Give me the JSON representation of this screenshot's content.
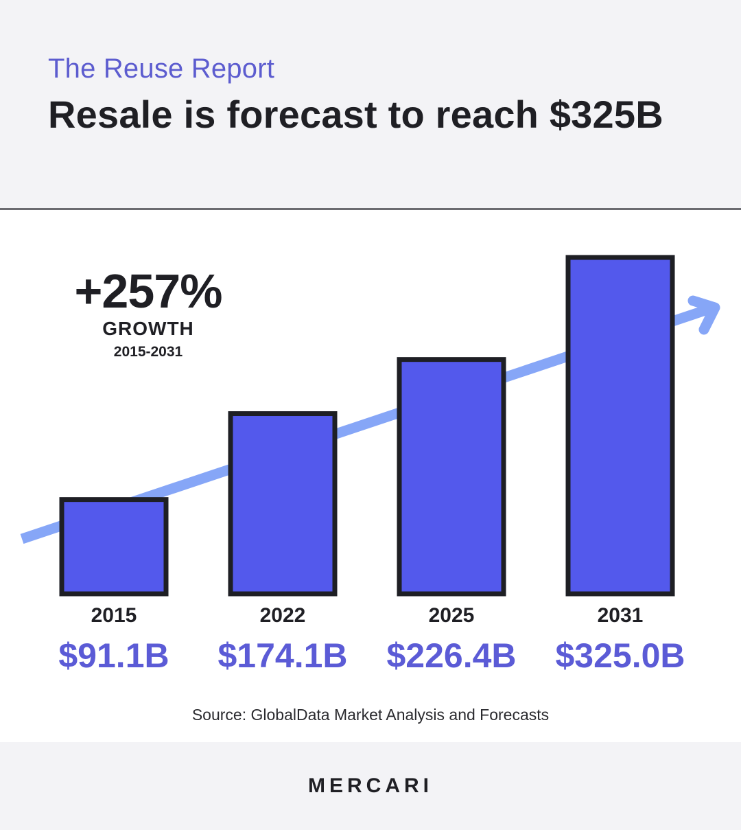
{
  "header": {
    "eyebrow": "The Reuse Report",
    "headline": "Resale is forecast to reach $325B"
  },
  "callout": {
    "percent": "+257%",
    "word": "GROWTH",
    "range": "2015-2031"
  },
  "chart_data": {
    "type": "bar",
    "categories": [
      "2015",
      "2022",
      "2025",
      "2031"
    ],
    "values": [
      91.1,
      174.1,
      226.4,
      325.0
    ],
    "value_labels": [
      "$91.1B",
      "$174.1B",
      "$226.4B",
      "$325.0B"
    ],
    "title": "",
    "xlabel": "",
    "ylabel": "",
    "ylim": [
      0,
      325.0
    ],
    "grid": false,
    "trend_arrow": true
  },
  "source": "Source: GlobalData Market Analysis and Forecasts",
  "brand": "MERCARI",
  "colors": {
    "bar_fill": "#5359ec",
    "bar_stroke": "#1e1f24",
    "arrow": "#86a6f7",
    "value_text": "#5b5bd6",
    "eyebrow_text": "#5c5ccf"
  }
}
